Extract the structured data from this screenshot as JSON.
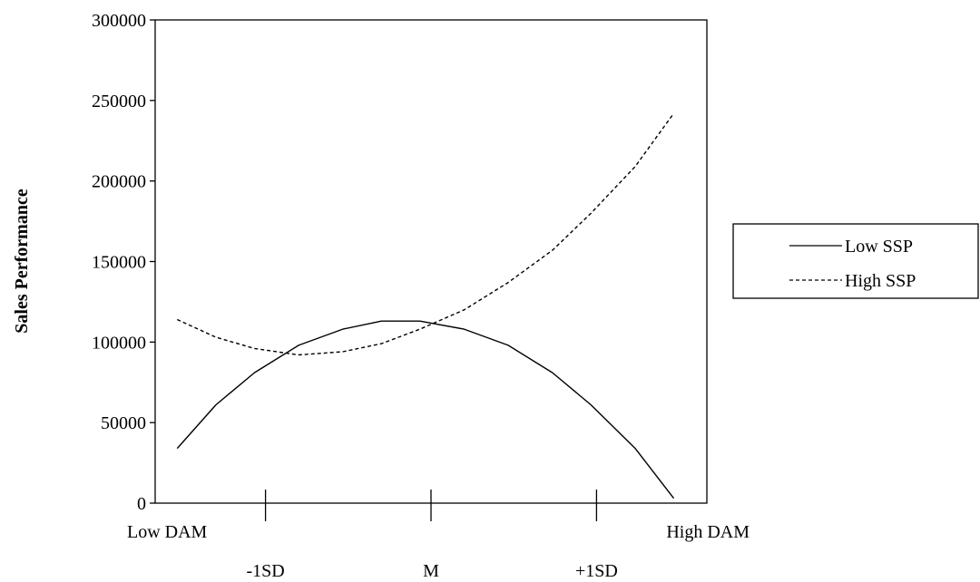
{
  "chart_data": {
    "type": "line",
    "ylabel": "Sales Performance",
    "ylim": [
      0,
      300000
    ],
    "yticks": [
      "0",
      "50000",
      "100000",
      "150000",
      "200000",
      "250000",
      "300000"
    ],
    "xlim": [
      0,
      1
    ],
    "x_end_labels": {
      "low": "Low DAM",
      "high": "High DAM"
    },
    "x_ticks": [
      {
        "label": "-1SD",
        "x": 0.2
      },
      {
        "label": "M",
        "x": 0.5
      },
      {
        "label": "+1SD",
        "x": 0.8
      }
    ],
    "x": [
      0.04,
      0.11,
      0.18,
      0.26,
      0.34,
      0.41,
      0.48,
      0.56,
      0.64,
      0.72,
      0.79,
      0.87,
      0.94
    ],
    "series": [
      {
        "name": "Low SSP",
        "style": "solid",
        "values": [
          34000,
          61000,
          81000,
          98000,
          108000,
          113000,
          113000,
          108000,
          98000,
          81000,
          61000,
          34000,
          3000
        ]
      },
      {
        "name": "High SSP",
        "style": "dashed",
        "values": [
          114000,
          103000,
          96000,
          92000,
          94000,
          99000,
          108000,
          120000,
          137000,
          157000,
          180000,
          209000,
          242000
        ]
      }
    ],
    "legend_position": "right",
    "grid": false
  }
}
